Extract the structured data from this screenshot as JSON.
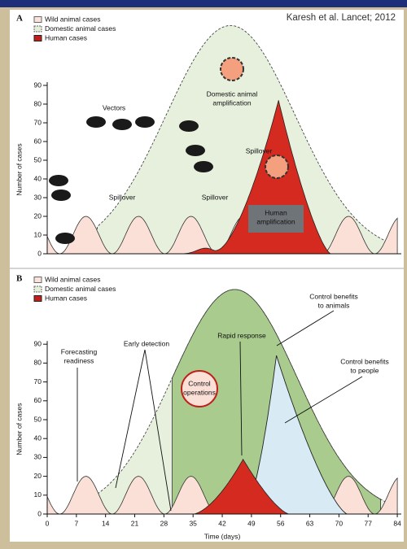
{
  "citation": "Karesh et al. Lancet; 2012",
  "panels": [
    {
      "label": "A",
      "legend": [
        "Wild animal cases",
        "Domestic animal cases",
        "Human cases"
      ],
      "y_axis_label": "Number of cases",
      "yticks": [
        0,
        10,
        20,
        30,
        40,
        50,
        60,
        70,
        80,
        90
      ],
      "annotations": {
        "vectors": "Vectors",
        "spillover_1": "Spillover",
        "spillover_2": "Spillover",
        "spillover_3": "Spillover",
        "domestic_amplification": [
          "Domestic animal",
          "amplification"
        ],
        "human_amplification": [
          "Human",
          "amplification"
        ]
      }
    },
    {
      "label": "B",
      "legend": [
        "Wild animal cases",
        "Domestic animal cases",
        "Human cases"
      ],
      "y_axis_label": "Number of cases",
      "yticks": [
        0,
        10,
        20,
        30,
        40,
        50,
        60,
        70,
        80,
        90
      ],
      "xticks": [
        0,
        7,
        14,
        21,
        28,
        35,
        42,
        49,
        56,
        63,
        70,
        77,
        84
      ],
      "x_axis_label": "Time (days)",
      "annotations": {
        "forecasting": [
          "Forecasting",
          "readiness"
        ],
        "early_detection": "Early detection",
        "control_operations": [
          "Control",
          "operations"
        ],
        "rapid_response": "Rapid response",
        "benefits_animals": [
          "Control benefits",
          "to animals"
        ],
        "benefits_people": [
          "Control benefits",
          "to people"
        ]
      }
    }
  ]
}
